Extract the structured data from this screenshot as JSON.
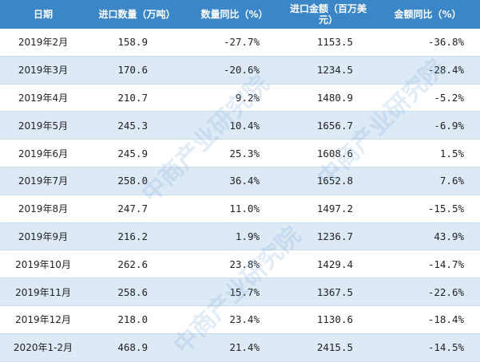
{
  "table": {
    "header": [
      "日期",
      "进口数量（万吨）",
      "数量同比（%）",
      "进口金额（百万美元）",
      "金额同比（%）"
    ],
    "rows": [
      [
        "2019年2月",
        "158.9",
        "-27.7%",
        "1153.5",
        "-36.8%"
      ],
      [
        "2019年3月",
        "170.6",
        "-20.6%",
        "1234.5",
        "-28.4%"
      ],
      [
        "2019年4月",
        "210.7",
        "9.2%",
        "1480.9",
        "-5.2%"
      ],
      [
        "2019年5月",
        "245.3",
        "10.4%",
        "1656.7",
        "-6.9%"
      ],
      [
        "2019年6月",
        "245.9",
        "25.3%",
        "1608.6",
        "1.5%"
      ],
      [
        "2019年7月",
        "258.0",
        "36.4%",
        "1652.8",
        "7.6%"
      ],
      [
        "2019年8月",
        "247.7",
        "11.0%",
        "1497.2",
        "-15.5%"
      ],
      [
        "2019年9月",
        "216.2",
        "1.9%",
        "1236.7",
        "43.9%"
      ],
      [
        "2019年10月",
        "262.6",
        "23.8%",
        "1429.4",
        "-14.7%"
      ],
      [
        "2019年11月",
        "258.6",
        "15.7%",
        "1367.5",
        "-22.6%"
      ],
      [
        "2019年12月",
        "218.0",
        "23.4%",
        "1130.6",
        "-18.4%"
      ],
      [
        "2020年1-2月",
        "468.9",
        "21.4%",
        "2415.5",
        "-14.5%"
      ]
    ]
  },
  "watermark": "中商产业研究院"
}
